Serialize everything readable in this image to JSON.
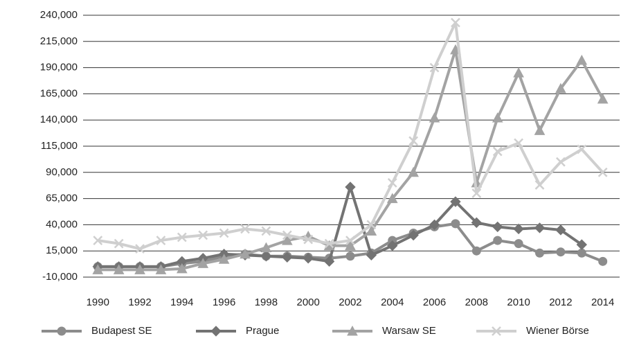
{
  "chart_data": {
    "type": "line",
    "x": [
      1990,
      1991,
      1992,
      1993,
      1994,
      1995,
      1996,
      1997,
      1998,
      1999,
      2000,
      2001,
      2002,
      2003,
      2004,
      2005,
      2006,
      2007,
      2008,
      2009,
      2010,
      2011,
      2012,
      2013,
      2014
    ],
    "xlim": [
      1989.3,
      2014.8
    ],
    "xticks": [
      1990,
      1992,
      1994,
      1996,
      1998,
      2000,
      2002,
      2004,
      2006,
      2008,
      2010,
      2012,
      2014
    ],
    "ylim": [
      -10000,
      240000
    ],
    "yticks": [
      {
        "value": -10000,
        "label": "-10,000"
      },
      {
        "value": 15000,
        "label": "15,000"
      },
      {
        "value": 40000,
        "label": "40,000"
      },
      {
        "value": 65000,
        "label": "65,000"
      },
      {
        "value": 90000,
        "label": "90,000"
      },
      {
        "value": 115000,
        "label": "115,000"
      },
      {
        "value": 140000,
        "label": "140,000"
      },
      {
        "value": 165000,
        "label": "165,000"
      },
      {
        "value": 190000,
        "label": "190,000"
      },
      {
        "value": 215000,
        "label": "215,000"
      },
      {
        "value": 240000,
        "label": "240,000"
      }
    ],
    "grid": true,
    "legend": "bottom",
    "series": [
      {
        "name": "Budapest SE",
        "color": "#8c8c8c",
        "marker": "circle",
        "values": [
          0,
          0,
          0,
          0,
          3000,
          5000,
          10000,
          12000,
          10000,
          10000,
          9000,
          8000,
          10000,
          13000,
          25000,
          32000,
          38000,
          41000,
          15000,
          25000,
          22000,
          13000,
          14000,
          13000,
          5000
        ]
      },
      {
        "name": "Prague",
        "color": "#737373",
        "marker": "diamond",
        "values": [
          0,
          0,
          0,
          0,
          5000,
          8000,
          12000,
          11000,
          10000,
          9000,
          8000,
          5000,
          76000,
          11000,
          20000,
          30000,
          40000,
          62000,
          42000,
          38000,
          36000,
          37000,
          35000,
          21000,
          null
        ]
      },
      {
        "name": "Warsaw SE",
        "color": "#a3a3a3",
        "marker": "triangle",
        "values": [
          -3000,
          -3000,
          -3000,
          -3000,
          -2000,
          3000,
          7000,
          12000,
          18000,
          25000,
          29000,
          20000,
          20000,
          34000,
          65000,
          90000,
          142000,
          207000,
          80000,
          142000,
          185000,
          130000,
          170000,
          197000,
          160000
        ]
      },
      {
        "name": "Wiener Börse",
        "color": "#cfcfcf",
        "marker": "x",
        "values": [
          25000,
          22000,
          17000,
          25000,
          28000,
          30000,
          32000,
          36000,
          34000,
          30000,
          26000,
          22000,
          25000,
          40000,
          80000,
          120000,
          190000,
          233000,
          70000,
          110000,
          118000,
          78000,
          100000,
          112000,
          90000
        ]
      }
    ]
  }
}
